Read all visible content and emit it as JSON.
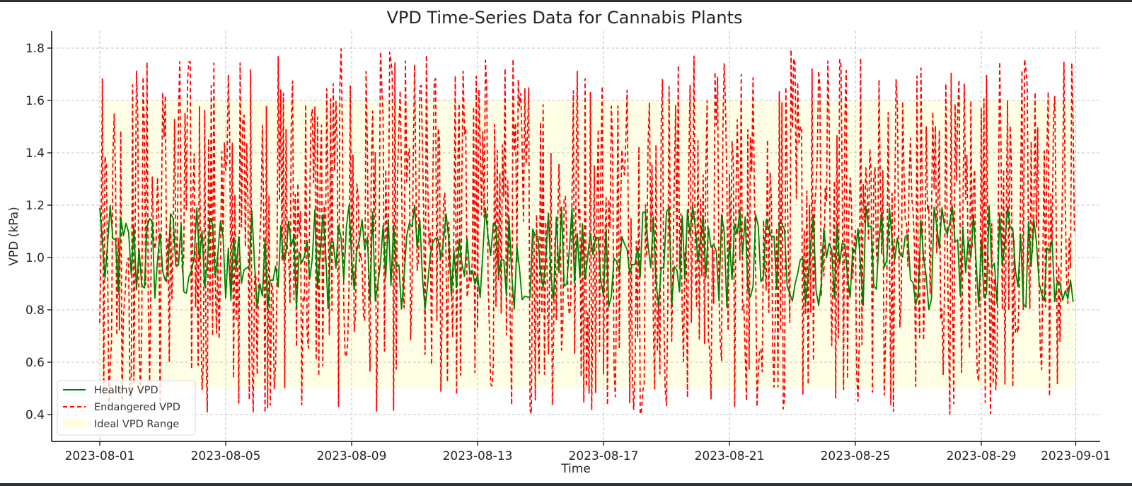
{
  "chart_data": {
    "type": "line",
    "title": "VPD Time-Series Data for Cannabis Plants",
    "xlabel": "Time",
    "ylabel": "VPD (kPa)",
    "x_ticks": [
      "2023-08-01",
      "2023-08-05",
      "2023-08-09",
      "2023-08-13",
      "2023-08-17",
      "2023-08-21",
      "2023-08-25",
      "2023-08-29",
      "2023-09-01"
    ],
    "y_ticks": [
      0.4,
      0.6,
      0.8,
      1.0,
      1.2,
      1.4,
      1.6,
      1.8
    ],
    "ylim": [
      0.37,
      1.87
    ],
    "xlim": [
      "2023-07-30T11:00",
      "2023-09-01T09:00"
    ],
    "data_range": [
      "2023-08-01T00:00",
      "2023-08-31T23:00"
    ],
    "grid": true,
    "legend_position": "lower left",
    "legend": [
      "Healthy VPD",
      "Endangered VPD",
      "Ideal VPD Range"
    ],
    "ideal_range": {
      "ymin": 0.5,
      "ymax": 1.6,
      "color": "#ffffe0"
    },
    "series": [
      {
        "name": "Healthy VPD",
        "style": "solid",
        "color": "#008000",
        "approx_min": 0.8,
        "approx_max": 1.2,
        "first_value": 1.19,
        "last_value": 0.83
      },
      {
        "name": "Endangered VPD",
        "style": "dashed",
        "color": "#ff0000",
        "approx_min": 0.4,
        "approx_max": 1.8,
        "first_value": 0.75,
        "last_value": 1.1
      }
    ],
    "sampling": "hourly (approx.), 744 points per series"
  },
  "colors": {
    "healthy": "#008000",
    "endangered": "#ff0000",
    "ideal": "#ffffe0",
    "grid": "#b0b0b0",
    "text": "#262626"
  }
}
